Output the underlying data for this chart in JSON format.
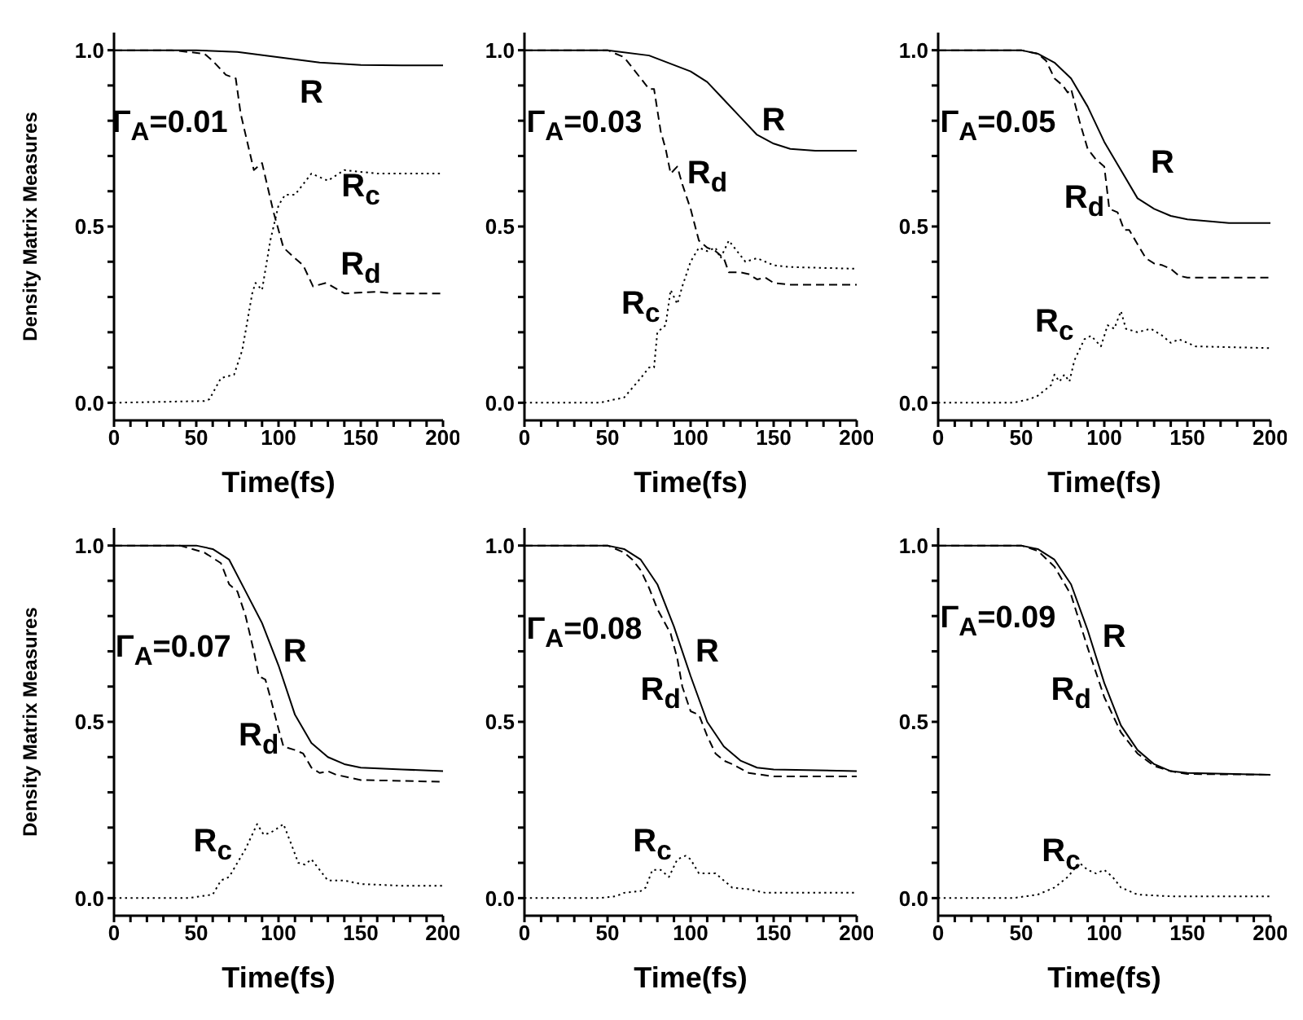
{
  "chart_data": [
    {
      "type": "line",
      "xlabel": "Time(fs)",
      "ylabel": "Density Matrix Measures",
      "annotations": [
        "Γ$_{A}$=0.01"
      ],
      "xlim": [
        0,
        200
      ],
      "ylim": [
        -0.05,
        1.05
      ],
      "xticks": [
        0,
        {
          "value": 10,
          "label": null
        },
        {
          "value": 20,
          "label": null
        },
        {
          "value": 30,
          "label": null
        },
        {
          "value": 40,
          "label": null
        },
        50,
        {
          "value": 60,
          "label": null
        },
        {
          "value": 70,
          "label": null
        },
        {
          "value": 80,
          "label": null
        },
        {
          "value": 90,
          "label": null
        },
        100,
        {
          "value": 110,
          "label": null
        },
        {
          "value": 120,
          "label": null
        },
        {
          "value": 130,
          "label": null
        },
        {
          "value": 140,
          "label": null
        },
        150,
        {
          "value": 160,
          "label": null
        },
        {
          "value": 170,
          "label": null
        },
        {
          "value": 180,
          "label": null
        },
        {
          "value": 190,
          "label": null
        },
        200
      ],
      "yticks": [
        {
          "value": 0,
          "label": "0.0"
        },
        {
          "value": 0.1,
          "label": null
        },
        {
          "value": 0.2,
          "label": null
        },
        {
          "value": 0.3,
          "label": null
        },
        {
          "value": 0.4,
          "label": null
        },
        {
          "value": 0.5,
          "label": "0.5"
        },
        {
          "value": 0.6,
          "label": null
        },
        {
          "value": 0.7,
          "label": null
        },
        {
          "value": 0.8,
          "label": null
        },
        {
          "value": 0.9,
          "label": null
        },
        {
          "value": 1,
          "label": "1.0"
        }
      ],
      "series": [
        {
          "name": "R",
          "color": "#000000",
          "line_style": "solid",
          "x": [
            0,
            50,
            75,
            100,
            125,
            150,
            175,
            200
          ],
          "values": [
            1,
            1,
            0.995,
            0.98,
            0.965,
            0.958,
            0.957,
            0.957
          ]
        },
        {
          "name": "R$_{d}$",
          "color": "#000000",
          "line_style": "dashed",
          "x": [
            0,
            35,
            55,
            60,
            68,
            74,
            77,
            85,
            90,
            97,
            103,
            110,
            115,
            121,
            129,
            140,
            160,
            170,
            200
          ],
          "values": [
            1,
            1,
            0.99,
            0.97,
            0.93,
            0.92,
            0.82,
            0.66,
            0.68,
            0.54,
            0.44,
            0.41,
            0.39,
            0.33,
            0.34,
            0.31,
            0.315,
            0.31,
            0.31
          ]
        },
        {
          "name": "R$_{c}$",
          "color": "#000000",
          "line_style": "dotted",
          "x": [
            0,
            55,
            58,
            65,
            73,
            78,
            84,
            86,
            90,
            95,
            100,
            104,
            110,
            115,
            120,
            130,
            140,
            160,
            200
          ],
          "values": [
            0,
            0.005,
            0.01,
            0.07,
            0.08,
            0.15,
            0.31,
            0.34,
            0.32,
            0.46,
            0.56,
            0.59,
            0.59,
            0.62,
            0.65,
            0.63,
            0.66,
            0.65,
            0.65
          ]
        }
      ]
    },
    {
      "type": "line",
      "xlabel": "Time(fs)",
      "annotations": [
        "Γ$_{A}$=0.03"
      ],
      "xlim": [
        0,
        200
      ],
      "ylim": [
        -0.05,
        1.05
      ],
      "xticks": [
        0,
        {
          "value": 10,
          "label": null
        },
        {
          "value": 20,
          "label": null
        },
        {
          "value": 30,
          "label": null
        },
        {
          "value": 40,
          "label": null
        },
        50,
        {
          "value": 60,
          "label": null
        },
        {
          "value": 70,
          "label": null
        },
        {
          "value": 80,
          "label": null
        },
        {
          "value": 90,
          "label": null
        },
        100,
        {
          "value": 110,
          "label": null
        },
        {
          "value": 120,
          "label": null
        },
        {
          "value": 130,
          "label": null
        },
        {
          "value": 140,
          "label": null
        },
        150,
        {
          "value": 160,
          "label": null
        },
        {
          "value": 170,
          "label": null
        },
        {
          "value": 180,
          "label": null
        },
        {
          "value": 190,
          "label": null
        },
        200
      ],
      "yticks": [
        {
          "value": 0,
          "label": "0.0"
        },
        {
          "value": 0.1,
          "label": null
        },
        {
          "value": 0.2,
          "label": null
        },
        {
          "value": 0.3,
          "label": null
        },
        {
          "value": 0.4,
          "label": null
        },
        {
          "value": 0.5,
          "label": "0.5"
        },
        {
          "value": 0.6,
          "label": null
        },
        {
          "value": 0.7,
          "label": null
        },
        {
          "value": 0.8,
          "label": null
        },
        {
          "value": 0.9,
          "label": null
        },
        {
          "value": 1,
          "label": "1.0"
        }
      ],
      "series": [
        {
          "name": "R",
          "color": "#000000",
          "line_style": "solid",
          "x": [
            0,
            50,
            75,
            100,
            110,
            120,
            130,
            140,
            150,
            160,
            175,
            200
          ],
          "values": [
            1,
            1,
            0.985,
            0.94,
            0.91,
            0.86,
            0.81,
            0.76,
            0.735,
            0.72,
            0.715,
            0.715
          ]
        },
        {
          "name": "R$_{d}$",
          "color": "#000000",
          "line_style": "dashed",
          "x": [
            0,
            50,
            55,
            60,
            65,
            75,
            78,
            82,
            85,
            88,
            92,
            95,
            100,
            105,
            110,
            115,
            120,
            123,
            130,
            135,
            140,
            145,
            150,
            160,
            200
          ],
          "values": [
            1,
            1,
            0.99,
            0.98,
            0.95,
            0.89,
            0.89,
            0.77,
            0.72,
            0.65,
            0.67,
            0.62,
            0.55,
            0.46,
            0.44,
            0.43,
            0.41,
            0.37,
            0.37,
            0.365,
            0.35,
            0.355,
            0.34,
            0.335,
            0.335
          ]
        },
        {
          "name": "R$_{c}$",
          "color": "#000000",
          "line_style": "dotted",
          "x": [
            0,
            45,
            50,
            60,
            70,
            75,
            78,
            80,
            85,
            88,
            92,
            95,
            100,
            105,
            110,
            115,
            118,
            123,
            128,
            133,
            140,
            145,
            150,
            160,
            200
          ],
          "values": [
            0,
            0,
            0.005,
            0.015,
            0.07,
            0.1,
            0.1,
            0.2,
            0.22,
            0.32,
            0.28,
            0.33,
            0.4,
            0.44,
            0.43,
            0.44,
            0.41,
            0.46,
            0.43,
            0.4,
            0.41,
            0.4,
            0.39,
            0.385,
            0.38
          ]
        }
      ]
    },
    {
      "type": "line",
      "xlabel": "Time(fs)",
      "annotations": [
        "Γ$_{A}$=0.05"
      ],
      "xlim": [
        0,
        200
      ],
      "ylim": [
        -0.05,
        1.05
      ],
      "xticks": [
        0,
        {
          "value": 10,
          "label": null
        },
        {
          "value": 20,
          "label": null
        },
        {
          "value": 30,
          "label": null
        },
        {
          "value": 40,
          "label": null
        },
        50,
        {
          "value": 60,
          "label": null
        },
        {
          "value": 70,
          "label": null
        },
        {
          "value": 80,
          "label": null
        },
        {
          "value": 90,
          "label": null
        },
        100,
        {
          "value": 110,
          "label": null
        },
        {
          "value": 120,
          "label": null
        },
        {
          "value": 130,
          "label": null
        },
        {
          "value": 140,
          "label": null
        },
        150,
        {
          "value": 160,
          "label": null
        },
        {
          "value": 170,
          "label": null
        },
        {
          "value": 180,
          "label": null
        },
        {
          "value": 190,
          "label": null
        },
        200
      ],
      "yticks": [
        {
          "value": 0,
          "label": "0.0"
        },
        {
          "value": 0.1,
          "label": null
        },
        {
          "value": 0.2,
          "label": null
        },
        {
          "value": 0.3,
          "label": null
        },
        {
          "value": 0.4,
          "label": null
        },
        {
          "value": 0.5,
          "label": "0.5"
        },
        {
          "value": 0.6,
          "label": null
        },
        {
          "value": 0.7,
          "label": null
        },
        {
          "value": 0.8,
          "label": null
        },
        {
          "value": 0.9,
          "label": null
        },
        {
          "value": 1,
          "label": "1.0"
        }
      ],
      "series": [
        {
          "name": "R",
          "color": "#000000",
          "line_style": "solid",
          "x": [
            0,
            50,
            60,
            70,
            80,
            90,
            100,
            110,
            120,
            130,
            140,
            150,
            175,
            200
          ],
          "values": [
            1,
            1,
            0.99,
            0.965,
            0.92,
            0.84,
            0.74,
            0.66,
            0.58,
            0.55,
            0.53,
            0.52,
            0.51,
            0.51
          ]
        },
        {
          "name": "R$_{d}$",
          "color": "#000000",
          "line_style": "dashed",
          "x": [
            0,
            50,
            60,
            65,
            70,
            75,
            78,
            80,
            85,
            90,
            95,
            100,
            103,
            108,
            112,
            115,
            120,
            125,
            130,
            135,
            140,
            145,
            150,
            200
          ],
          "values": [
            1,
            1,
            0.99,
            0.97,
            0.92,
            0.9,
            0.88,
            0.89,
            0.8,
            0.72,
            0.69,
            0.67,
            0.55,
            0.54,
            0.49,
            0.49,
            0.45,
            0.41,
            0.395,
            0.39,
            0.38,
            0.36,
            0.355,
            0.355
          ]
        },
        {
          "name": "R$_{c}$",
          "color": "#000000",
          "line_style": "dotted",
          "x": [
            0,
            45,
            55,
            60,
            68,
            70,
            73,
            76,
            79,
            82,
            88,
            92,
            98,
            102,
            106,
            110,
            113,
            120,
            128,
            135,
            140,
            145,
            155,
            200
          ],
          "values": [
            0,
            0,
            0.01,
            0.02,
            0.05,
            0.08,
            0.06,
            0.08,
            0.06,
            0.12,
            0.18,
            0.19,
            0.16,
            0.22,
            0.21,
            0.26,
            0.21,
            0.2,
            0.21,
            0.19,
            0.17,
            0.18,
            0.16,
            0.155
          ]
        }
      ]
    },
    {
      "type": "line",
      "xlabel": "Time(fs)",
      "ylabel": "Density Matrix Measures",
      "annotations": [
        "Γ$_{A}$=0.07"
      ],
      "xlim": [
        0,
        200
      ],
      "ylim": [
        -0.05,
        1.05
      ],
      "xticks": [
        0,
        {
          "value": 10,
          "label": null
        },
        {
          "value": 20,
          "label": null
        },
        {
          "value": 30,
          "label": null
        },
        {
          "value": 40,
          "label": null
        },
        50,
        {
          "value": 60,
          "label": null
        },
        {
          "value": 70,
          "label": null
        },
        {
          "value": 80,
          "label": null
        },
        {
          "value": 90,
          "label": null
        },
        100,
        {
          "value": 110,
          "label": null
        },
        {
          "value": 120,
          "label": null
        },
        {
          "value": 130,
          "label": null
        },
        {
          "value": 140,
          "label": null
        },
        150,
        {
          "value": 160,
          "label": null
        },
        {
          "value": 170,
          "label": null
        },
        {
          "value": 180,
          "label": null
        },
        {
          "value": 190,
          "label": null
        },
        200
      ],
      "yticks": [
        {
          "value": 0,
          "label": "0.0"
        },
        {
          "value": 0.1,
          "label": null
        },
        {
          "value": 0.2,
          "label": null
        },
        {
          "value": 0.3,
          "label": null
        },
        {
          "value": 0.4,
          "label": null
        },
        {
          "value": 0.5,
          "label": "0.5"
        },
        {
          "value": 0.6,
          "label": null
        },
        {
          "value": 0.7,
          "label": null
        },
        {
          "value": 0.8,
          "label": null
        },
        {
          "value": 0.9,
          "label": null
        },
        {
          "value": 1,
          "label": "1.0"
        }
      ],
      "series": [
        {
          "name": "R",
          "color": "#000000",
          "line_style": "solid",
          "x": [
            0,
            50,
            60,
            70,
            80,
            90,
            100,
            110,
            120,
            130,
            140,
            150,
            175,
            200
          ],
          "values": [
            1,
            1,
            0.99,
            0.96,
            0.87,
            0.78,
            0.66,
            0.52,
            0.44,
            0.4,
            0.38,
            0.37,
            0.365,
            0.36
          ]
        },
        {
          "name": "R$_{d}$",
          "color": "#000000",
          "line_style": "dashed",
          "x": [
            0,
            40,
            55,
            65,
            70,
            75,
            80,
            85,
            88,
            92,
            95,
            100,
            103,
            110,
            115,
            120,
            125,
            130,
            135,
            150,
            200
          ],
          "values": [
            1,
            1,
            0.98,
            0.95,
            0.89,
            0.87,
            0.8,
            0.7,
            0.63,
            0.62,
            0.57,
            0.48,
            0.43,
            0.42,
            0.41,
            0.37,
            0.355,
            0.36,
            0.35,
            0.335,
            0.33
          ]
        },
        {
          "name": "R$_{c}$",
          "color": "#000000",
          "line_style": "dotted",
          "x": [
            0,
            45,
            60,
            65,
            70,
            75,
            80,
            87,
            91,
            95,
            100,
            103,
            108,
            112,
            116,
            120,
            125,
            130,
            140,
            150,
            175,
            200
          ],
          "values": [
            0,
            0,
            0.01,
            0.05,
            0.06,
            0.1,
            0.14,
            0.21,
            0.18,
            0.185,
            0.2,
            0.21,
            0.15,
            0.1,
            0.095,
            0.11,
            0.08,
            0.05,
            0.05,
            0.04,
            0.035,
            0.035
          ]
        }
      ]
    },
    {
      "type": "line",
      "xlabel": "Time(fs)",
      "annotations": [
        "Γ$_{A}$=0.08"
      ],
      "xlim": [
        0,
        200
      ],
      "ylim": [
        -0.05,
        1.05
      ],
      "xticks": [
        0,
        {
          "value": 10,
          "label": null
        },
        {
          "value": 20,
          "label": null
        },
        {
          "value": 30,
          "label": null
        },
        {
          "value": 40,
          "label": null
        },
        50,
        {
          "value": 60,
          "label": null
        },
        {
          "value": 70,
          "label": null
        },
        {
          "value": 80,
          "label": null
        },
        {
          "value": 90,
          "label": null
        },
        100,
        {
          "value": 110,
          "label": null
        },
        {
          "value": 120,
          "label": null
        },
        {
          "value": 130,
          "label": null
        },
        {
          "value": 140,
          "label": null
        },
        150,
        {
          "value": 160,
          "label": null
        },
        {
          "value": 170,
          "label": null
        },
        {
          "value": 180,
          "label": null
        },
        {
          "value": 190,
          "label": null
        },
        200
      ],
      "yticks": [
        {
          "value": 0,
          "label": "0.0"
        },
        {
          "value": 0.1,
          "label": null
        },
        {
          "value": 0.2,
          "label": null
        },
        {
          "value": 0.3,
          "label": null
        },
        {
          "value": 0.4,
          "label": null
        },
        {
          "value": 0.5,
          "label": "0.5"
        },
        {
          "value": 0.6,
          "label": null
        },
        {
          "value": 0.7,
          "label": null
        },
        {
          "value": 0.8,
          "label": null
        },
        {
          "value": 0.9,
          "label": null
        },
        {
          "value": 1,
          "label": "1.0"
        }
      ],
      "series": [
        {
          "name": "R",
          "color": "#000000",
          "line_style": "solid",
          "x": [
            0,
            50,
            60,
            70,
            80,
            90,
            100,
            110,
            120,
            130,
            140,
            150,
            200
          ],
          "values": [
            1,
            1,
            0.99,
            0.96,
            0.89,
            0.77,
            0.63,
            0.5,
            0.43,
            0.39,
            0.37,
            0.365,
            0.36
          ]
        },
        {
          "name": "R$_{d}$",
          "color": "#000000",
          "line_style": "dashed",
          "x": [
            0,
            50,
            60,
            65,
            70,
            75,
            80,
            88,
            92,
            95,
            100,
            105,
            110,
            115,
            120,
            125,
            135,
            150,
            200
          ],
          "values": [
            1,
            1,
            0.98,
            0.96,
            0.93,
            0.88,
            0.82,
            0.75,
            0.68,
            0.6,
            0.53,
            0.52,
            0.46,
            0.41,
            0.39,
            0.38,
            0.355,
            0.345,
            0.345
          ]
        },
        {
          "name": "R$_{c}$",
          "color": "#000000",
          "line_style": "dotted",
          "x": [
            0,
            45,
            55,
            60,
            70,
            73,
            77,
            82,
            87,
            92,
            97,
            100,
            105,
            110,
            115,
            120,
            125,
            135,
            145,
            200
          ],
          "values": [
            0,
            0,
            0.005,
            0.015,
            0.02,
            0.03,
            0.08,
            0.08,
            0.06,
            0.11,
            0.12,
            0.11,
            0.07,
            0.07,
            0.07,
            0.05,
            0.03,
            0.025,
            0.015,
            0.015
          ]
        }
      ]
    },
    {
      "type": "line",
      "xlabel": "Time(fs)",
      "annotations": [
        "Γ$_{A}$=0.09"
      ],
      "xlim": [
        0,
        200
      ],
      "ylim": [
        -0.05,
        1.05
      ],
      "xticks": [
        0,
        {
          "value": 10,
          "label": null
        },
        {
          "value": 20,
          "label": null
        },
        {
          "value": 30,
          "label": null
        },
        {
          "value": 40,
          "label": null
        },
        50,
        {
          "value": 60,
          "label": null
        },
        {
          "value": 70,
          "label": null
        },
        {
          "value": 80,
          "label": null
        },
        {
          "value": 90,
          "label": null
        },
        100,
        {
          "value": 110,
          "label": null
        },
        {
          "value": 120,
          "label": null
        },
        {
          "value": 130,
          "label": null
        },
        {
          "value": 140,
          "label": null
        },
        150,
        {
          "value": 160,
          "label": null
        },
        {
          "value": 170,
          "label": null
        },
        {
          "value": 180,
          "label": null
        },
        {
          "value": 190,
          "label": null
        },
        200
      ],
      "yticks": [
        {
          "value": 0,
          "label": "0.0"
        },
        {
          "value": 0.1,
          "label": null
        },
        {
          "value": 0.2,
          "label": null
        },
        {
          "value": 0.3,
          "label": null
        },
        {
          "value": 0.4,
          "label": null
        },
        {
          "value": 0.5,
          "label": "0.5"
        },
        {
          "value": 0.6,
          "label": null
        },
        {
          "value": 0.7,
          "label": null
        },
        {
          "value": 0.8,
          "label": null
        },
        {
          "value": 0.9,
          "label": null
        },
        {
          "value": 1,
          "label": "1.0"
        }
      ],
      "series": [
        {
          "name": "R",
          "color": "#000000",
          "line_style": "solid",
          "x": [
            0,
            50,
            60,
            70,
            80,
            90,
            100,
            110,
            120,
            130,
            140,
            150,
            200
          ],
          "values": [
            1,
            1,
            0.99,
            0.96,
            0.89,
            0.76,
            0.61,
            0.49,
            0.42,
            0.38,
            0.36,
            0.355,
            0.35
          ]
        },
        {
          "name": "R$_{d}$",
          "color": "#000000",
          "line_style": "dashed",
          "x": [
            0,
            50,
            60,
            70,
            80,
            90,
            100,
            110,
            120,
            130,
            140,
            150,
            200
          ],
          "values": [
            1,
            1,
            0.985,
            0.94,
            0.86,
            0.71,
            0.57,
            0.47,
            0.41,
            0.375,
            0.36,
            0.352,
            0.35
          ]
        },
        {
          "name": "R$_{c}$",
          "color": "#000000",
          "line_style": "dotted",
          "x": [
            0,
            45,
            60,
            70,
            78,
            85,
            90,
            95,
            100,
            105,
            110,
            120,
            140,
            200
          ],
          "values": [
            0,
            0,
            0.01,
            0.03,
            0.06,
            0.1,
            0.08,
            0.07,
            0.08,
            0.06,
            0.03,
            0.01,
            0.005,
            0.005
          ]
        }
      ]
    }
  ]
}
